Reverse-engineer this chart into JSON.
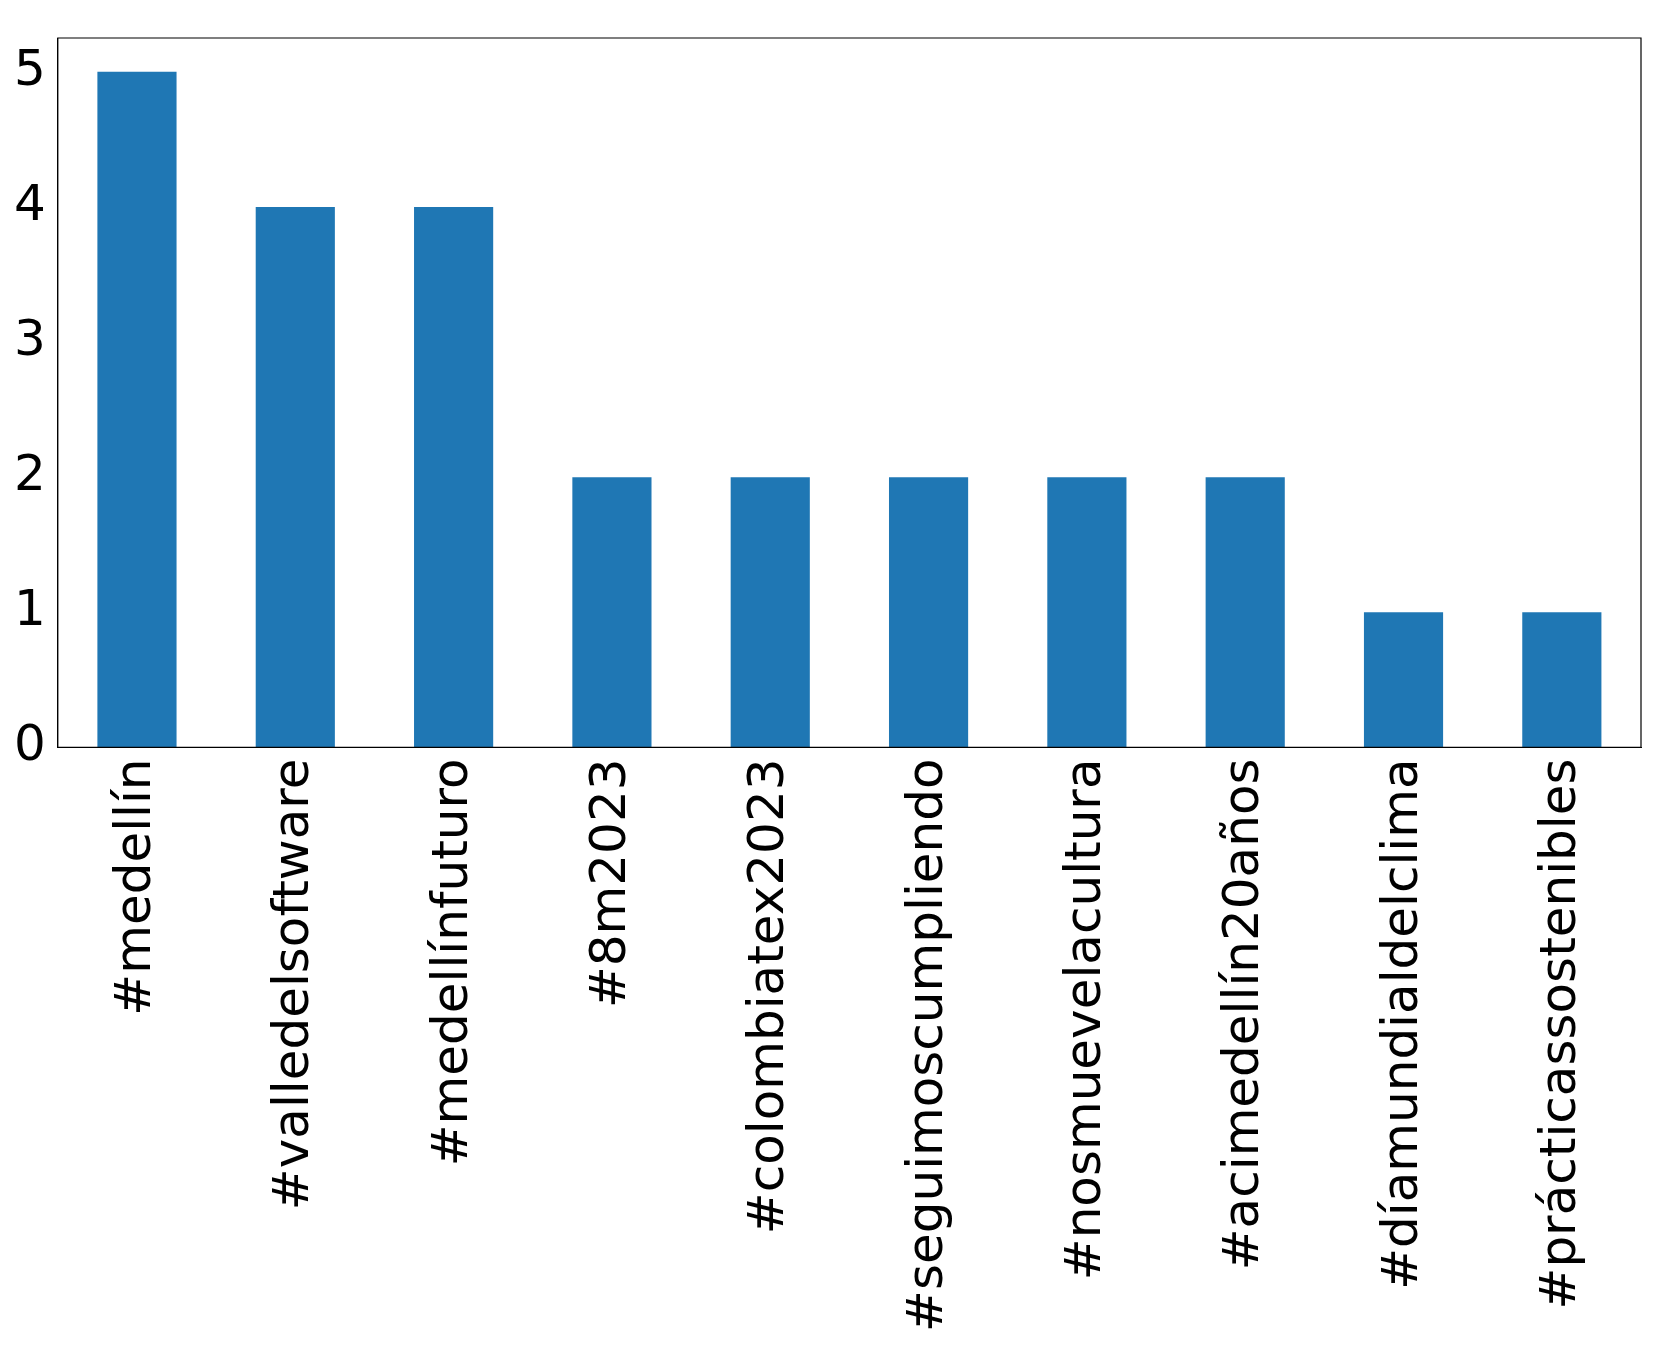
{
  "chart_data": {
    "type": "bar",
    "categories": [
      "#medellín",
      "#valledelsoftware",
      "#medellínfuturo",
      "#8m2023",
      "#colombiatex2023",
      "#seguimoscumpliendo",
      "#nosmuevelacultura",
      "#acimedellín20años",
      "#díamundialdelclima",
      "#prácticassostenibles"
    ],
    "values": [
      5,
      4,
      4,
      2,
      2,
      2,
      2,
      2,
      1,
      1
    ],
    "color": "#1f77b4",
    "ylim": [
      0,
      5.25
    ],
    "yticks": [
      0,
      1,
      2,
      3,
      4,
      5
    ],
    "grid": false,
    "legend": false
  }
}
